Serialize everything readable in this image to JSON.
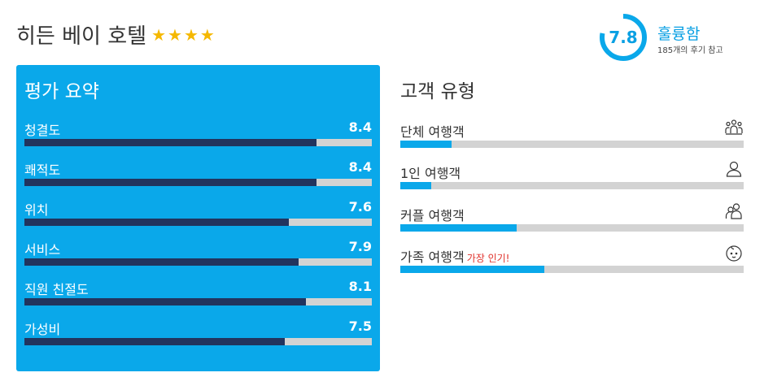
{
  "hotel": {
    "name": "히든 베이 호텔",
    "stars": 4
  },
  "score": {
    "value": "7.8",
    "fraction": 0.78,
    "label": "훌륭함",
    "review_count": "185개의 후기 참고"
  },
  "summary": {
    "title": "평가 요약",
    "ratings": [
      {
        "label": "청결도",
        "value": "8.4",
        "fraction": 0.84
      },
      {
        "label": "쾌적도",
        "value": "8.4",
        "fraction": 0.84
      },
      {
        "label": "위치",
        "value": "7.6",
        "fraction": 0.76
      },
      {
        "label": "서비스",
        "value": "7.9",
        "fraction": 0.79
      },
      {
        "label": "직원 친절도",
        "value": "8.1",
        "fraction": 0.81
      },
      {
        "label": "가성비",
        "value": "7.5",
        "fraction": 0.75
      }
    ]
  },
  "travelers": {
    "title": "고객 유형",
    "types": [
      {
        "label": "단체 여행객",
        "badge": "",
        "icon": "group-icon",
        "fraction": 0.15
      },
      {
        "label": "1인 여행객",
        "badge": "",
        "icon": "person-icon",
        "fraction": 0.09
      },
      {
        "label": "커플 여행객",
        "badge": "",
        "icon": "couple-icon",
        "fraction": 0.34
      },
      {
        "label": "가족 여행객",
        "badge": "가장 인기!",
        "icon": "baby-icon",
        "fraction": 0.42
      }
    ]
  },
  "colors": {
    "accent": "#0aa8ea",
    "rating_fill": "#22345e",
    "track": "#d3d3d3",
    "star": "#f5b800",
    "badge": "#e0312b"
  }
}
